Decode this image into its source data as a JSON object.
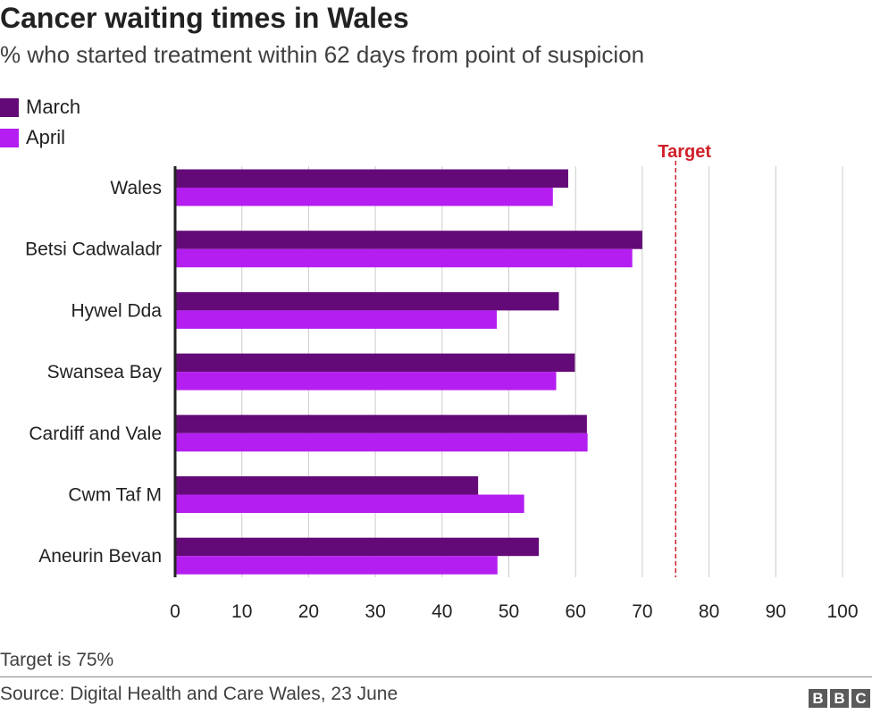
{
  "header": {
    "title": "Cancer waiting times in Wales",
    "subtitle": "% who started treatment within 62 days from point of suspicion"
  },
  "footer": {
    "note": "Target is 75%",
    "source": "Source: Digital Health and Care Wales, 23 June",
    "logo_letters": [
      "B",
      "B",
      "C"
    ]
  },
  "colors": {
    "march": "#640a78",
    "april": "#b41ef0",
    "target": "#d0202a",
    "grid": "#cccccc",
    "axis": "#222222"
  },
  "chart_data": {
    "type": "bar",
    "orientation": "horizontal",
    "categories": [
      "Wales",
      "Betsi Cadwaladr",
      "Hywel Dda",
      "Swansea Bay",
      "Cardiff and Vale",
      "Cwm Taf M",
      "Aneurin Bevan"
    ],
    "series": [
      {
        "name": "March",
        "values": [
          58.9,
          70.0,
          57.5,
          59.9,
          61.7,
          45.4,
          54.5
        ]
      },
      {
        "name": "April",
        "values": [
          56.6,
          68.5,
          48.2,
          57.1,
          61.8,
          52.3,
          48.3
        ]
      }
    ],
    "xlim": [
      0,
      100
    ],
    "xticks": [
      0,
      10,
      20,
      30,
      40,
      50,
      60,
      70,
      80,
      90,
      100
    ],
    "grid": true,
    "legend_position": "top-left",
    "reference_line": {
      "value": 75,
      "label": "Target"
    }
  }
}
